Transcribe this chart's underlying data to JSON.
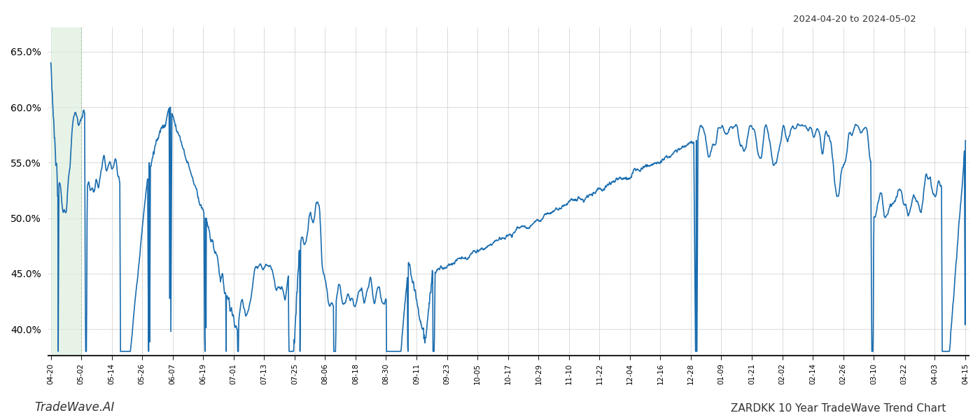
{
  "title_right": "2024-04-20 to 2024-05-02",
  "title_bottom_left": "TradeWave.AI",
  "title_bottom_right": "ZARDKK 10 Year TradeWave Trend Chart",
  "line_color": "#1a6daf",
  "line_width": 1.2,
  "background_color": "#ffffff",
  "grid_color": "#cccccc",
  "highlight_color": "#ddeedd",
  "highlight_alpha": 0.7,
  "ylim": [
    0.376,
    0.672
  ],
  "yticks": [
    0.4,
    0.45,
    0.5,
    0.55,
    0.6,
    0.65
  ],
  "ytick_labels": [
    "40.0%",
    "45.0%",
    "50.0%",
    "55.0%",
    "60.0%",
    "65.0%"
  ],
  "x_labels": [
    "04-20",
    "05-02",
    "05-14",
    "05-26",
    "06-07",
    "06-19",
    "07-01",
    "07-13",
    "07-25",
    "08-06",
    "08-18",
    "08-30",
    "09-11",
    "09-23",
    "10-05",
    "10-17",
    "10-29",
    "11-10",
    "11-22",
    "12-04",
    "12-16",
    "12-28",
    "01-09",
    "01-21",
    "02-02",
    "02-14",
    "02-26",
    "03-10",
    "03-22",
    "04-03",
    "04-15"
  ],
  "n_points": 2600
}
